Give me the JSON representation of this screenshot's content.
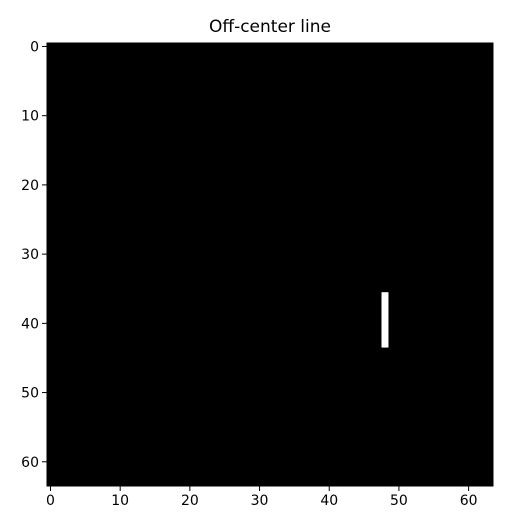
{
  "chart_data": {
    "type": "heatmap",
    "title": "Off-center line",
    "xlabel": "",
    "ylabel": "",
    "width": 64,
    "height": 64,
    "xlim": [
      -0.5,
      63.5
    ],
    "ylim": [
      63.5,
      -0.5
    ],
    "x_ticks": [
      0,
      10,
      20,
      30,
      40,
      50,
      60
    ],
    "y_ticks": [
      0,
      10,
      20,
      30,
      40,
      50,
      60
    ],
    "x_tick_labels": [
      "0",
      "10",
      "20",
      "30",
      "40",
      "50",
      "60"
    ],
    "y_tick_labels": [
      "0",
      "10",
      "20",
      "30",
      "40",
      "50",
      "60"
    ],
    "background_value": 0,
    "colormap": "gray",
    "grid": false,
    "lit_pixels": [
      {
        "x": 48,
        "y_start": 36,
        "y_end": 43,
        "value": 1
      }
    ],
    "colors": {
      "background": "#000000",
      "foreground": "#ffffff"
    }
  }
}
